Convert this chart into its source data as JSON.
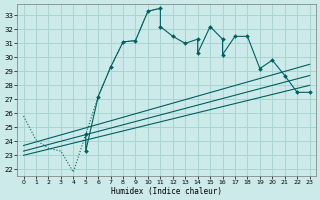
{
  "xlabel": "Humidex (Indice chaleur)",
  "bg_color": "#cdeaea",
  "grid_color": "#a8d4d4",
  "line_color": "#005f5f",
  "xlim": [
    -0.5,
    23.5
  ],
  "ylim": [
    21.5,
    33.8
  ],
  "xticks": [
    0,
    1,
    2,
    3,
    4,
    5,
    6,
    7,
    8,
    9,
    10,
    11,
    12,
    13,
    14,
    15,
    16,
    17,
    18,
    19,
    20,
    21,
    22,
    23
  ],
  "yticks": [
    22,
    23,
    24,
    25,
    26,
    27,
    28,
    29,
    30,
    31,
    32,
    33
  ],
  "dotted_series": [
    [
      0,
      25.8
    ],
    [
      1,
      24.1
    ],
    [
      2,
      23.5
    ],
    [
      3,
      23.3
    ],
    [
      4,
      21.8
    ],
    [
      5,
      24.5
    ],
    [
      6,
      27.2
    ],
    [
      7,
      29.3
    ],
    [
      8,
      31.1
    ],
    [
      9,
      31.2
    ],
    [
      10,
      33.3
    ],
    [
      11,
      33.5
    ]
  ],
  "solid_series": [
    [
      5,
      24.5
    ],
    [
      5,
      23.3
    ],
    [
      6,
      27.2
    ],
    [
      7,
      29.3
    ],
    [
      8,
      31.1
    ],
    [
      9,
      31.2
    ],
    [
      10,
      33.3
    ],
    [
      11,
      33.5
    ],
    [
      11,
      32.2
    ],
    [
      12,
      31.5
    ],
    [
      13,
      31.0
    ],
    [
      14,
      31.3
    ],
    [
      14,
      30.3
    ],
    [
      15,
      32.2
    ],
    [
      16,
      31.3
    ],
    [
      16,
      30.2
    ],
    [
      17,
      31.5
    ],
    [
      18,
      31.5
    ],
    [
      19,
      29.2
    ],
    [
      20,
      29.8
    ],
    [
      21,
      28.7
    ],
    [
      22,
      27.5
    ],
    [
      23,
      27.5
    ]
  ],
  "linear1": [
    [
      0,
      23.0
    ],
    [
      23,
      28.0
    ]
  ],
  "linear2": [
    [
      0,
      23.3
    ],
    [
      23,
      28.7
    ]
  ],
  "linear3": [
    [
      0,
      23.7
    ],
    [
      23,
      29.5
    ]
  ]
}
